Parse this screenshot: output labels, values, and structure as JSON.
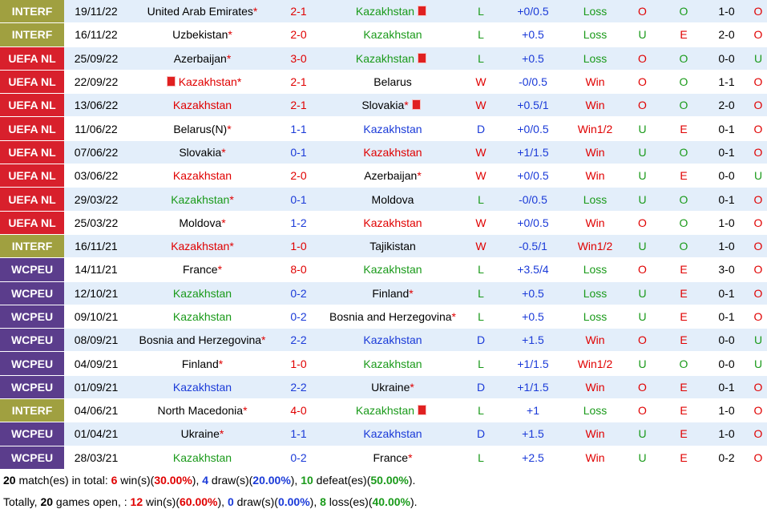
{
  "table": {
    "rows": [
      [
        "INTERF",
        "19/11/22",
        "United Arab Emirates*",
        "2-1",
        "Kazakhstan",
        "L",
        "+0/0.5",
        "Loss",
        "O",
        "O",
        "1-0",
        "O"
      ],
      [
        "INTERF",
        "16/11/22",
        "Uzbekistan*",
        "2-0",
        "Kazakhstan",
        "L",
        "+0.5",
        "Loss",
        "U",
        "E",
        "2-0",
        "O"
      ],
      [
        "UEFA NL",
        "25/09/22",
        "Azerbaijan*",
        "3-0",
        "Kazakhstan",
        "L",
        "+0.5",
        "Loss",
        "O",
        "O",
        "0-0",
        "U"
      ],
      [
        "UEFA NL",
        "22/09/22",
        "Kazakhstan*",
        "2-1",
        "Belarus",
        "W",
        "-0/0.5",
        "Win",
        "O",
        "O",
        "1-1",
        "O"
      ],
      [
        "UEFA NL",
        "13/06/22",
        "Kazakhstan",
        "2-1",
        "Slovakia*",
        "W",
        "+0.5/1",
        "Win",
        "O",
        "O",
        "2-0",
        "O"
      ],
      [
        "UEFA NL",
        "11/06/22",
        "Belarus(N)*",
        "1-1",
        "Kazakhstan",
        "D",
        "+0/0.5",
        "Win1/2",
        "U",
        "E",
        "0-1",
        "O"
      ],
      [
        "UEFA NL",
        "07/06/22",
        "Slovakia*",
        "0-1",
        "Kazakhstan",
        "W",
        "+1/1.5",
        "Win",
        "U",
        "O",
        "0-1",
        "O"
      ],
      [
        "UEFA NL",
        "03/06/22",
        "Kazakhstan",
        "2-0",
        "Azerbaijan*",
        "W",
        "+0/0.5",
        "Win",
        "U",
        "E",
        "0-0",
        "U"
      ],
      [
        "UEFA NL",
        "29/03/22",
        "Kazakhstan*",
        "0-1",
        "Moldova",
        "L",
        "-0/0.5",
        "Loss",
        "U",
        "O",
        "0-1",
        "O"
      ],
      [
        "UEFA NL",
        "25/03/22",
        "Moldova*",
        "1-2",
        "Kazakhstan",
        "W",
        "+0/0.5",
        "Win",
        "O",
        "O",
        "1-0",
        "O"
      ],
      [
        "INTERF",
        "16/11/21",
        "Kazakhstan*",
        "1-0",
        "Tajikistan",
        "W",
        "-0.5/1",
        "Win1/2",
        "U",
        "O",
        "1-0",
        "O"
      ],
      [
        "WCPEU",
        "14/11/21",
        "France*",
        "8-0",
        "Kazakhstan",
        "L",
        "+3.5/4",
        "Loss",
        "O",
        "E",
        "3-0",
        "O"
      ],
      [
        "WCPEU",
        "12/10/21",
        "Kazakhstan",
        "0-2",
        "Finland*",
        "L",
        "+0.5",
        "Loss",
        "U",
        "E",
        "0-1",
        "O"
      ],
      [
        "WCPEU",
        "09/10/21",
        "Kazakhstan",
        "0-2",
        "Bosnia and Herzegovina*",
        "L",
        "+0.5",
        "Loss",
        "U",
        "E",
        "0-1",
        "O"
      ],
      [
        "WCPEU",
        "08/09/21",
        "Bosnia and Herzegovina*",
        "2-2",
        "Kazakhstan",
        "D",
        "+1.5",
        "Win",
        "O",
        "E",
        "0-0",
        "U"
      ],
      [
        "WCPEU",
        "04/09/21",
        "Finland*",
        "1-0",
        "Kazakhstan",
        "L",
        "+1/1.5",
        "Win1/2",
        "U",
        "O",
        "0-0",
        "U"
      ],
      [
        "WCPEU",
        "01/09/21",
        "Kazakhstan",
        "2-2",
        "Ukraine*",
        "D",
        "+1/1.5",
        "Win",
        "O",
        "E",
        "0-1",
        "O"
      ],
      [
        "INTERF",
        "04/06/21",
        "North Macedonia*",
        "4-0",
        "Kazakhstan",
        "L",
        "+1",
        "Loss",
        "O",
        "E",
        "1-0",
        "O"
      ],
      [
        "WCPEU",
        "01/04/21",
        "Ukraine*",
        "1-1",
        "Kazakhstan",
        "D",
        "+1.5",
        "Win",
        "U",
        "E",
        "1-0",
        "O"
      ],
      [
        "WCPEU",
        "28/03/21",
        "Kazakhstan",
        "0-2",
        "France*",
        "L",
        "+2.5",
        "Win",
        "U",
        "E",
        "0-2",
        "O"
      ]
    ]
  },
  "summary": [
    [
      "20",
      " match(es) in total: ",
      "6",
      " win(s)(",
      "30.00%",
      "), ",
      "4",
      " draw(s)(",
      "20.00%",
      "), ",
      "10",
      " defeat(es)(",
      "50.00%",
      ")."
    ],
    [
      "Totally, ",
      "20",
      " games open, : ",
      "12",
      " win(s)(",
      "60.00%",
      "), ",
      "0",
      " draw(s)(",
      "0.00%",
      "), ",
      "8",
      " loss(es)(",
      "40.00%",
      ")."
    ]
  ]
}
